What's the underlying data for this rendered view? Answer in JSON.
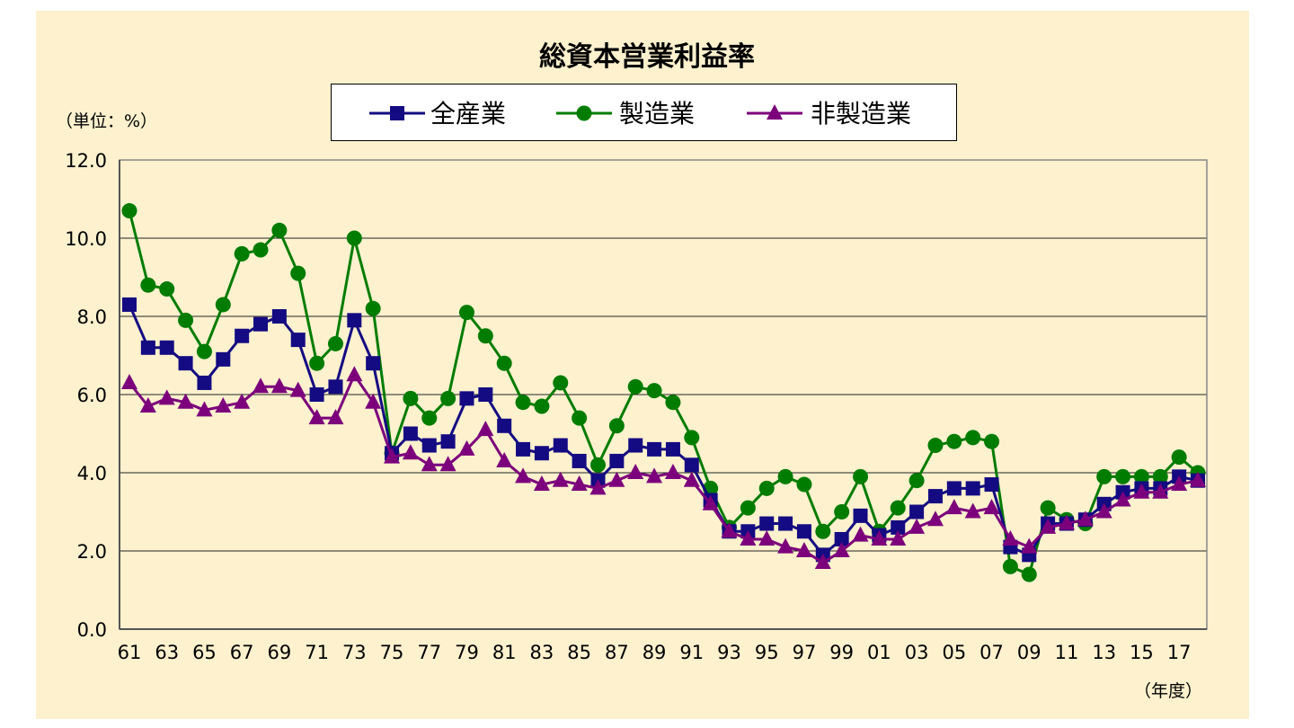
{
  "chart_data": {
    "type": "line",
    "title": "総資本営業利益率",
    "ylabel": "（単位：%）",
    "xlabel": "（年度）",
    "ylim": [
      0,
      12
    ],
    "yticks": [
      "0.0",
      "2.0",
      "4.0",
      "6.0",
      "8.0",
      "10.0",
      "12.0"
    ],
    "grid": true,
    "legend_position": "top",
    "x": [
      "61",
      "62",
      "63",
      "64",
      "65",
      "66",
      "67",
      "68",
      "69",
      "70",
      "71",
      "72",
      "73",
      "74",
      "75",
      "76",
      "77",
      "78",
      "79",
      "80",
      "81",
      "82",
      "83",
      "84",
      "85",
      "86",
      "87",
      "88",
      "89",
      "90",
      "91",
      "92",
      "93",
      "94",
      "95",
      "96",
      "97",
      "98",
      "99",
      "00",
      "01",
      "02",
      "03",
      "04",
      "05",
      "06",
      "07",
      "08",
      "09",
      "10",
      "11",
      "12",
      "13",
      "14",
      "15",
      "16",
      "17",
      "18"
    ],
    "xtick_labels": [
      "61",
      "63",
      "65",
      "67",
      "69",
      "71",
      "73",
      "75",
      "77",
      "79",
      "81",
      "83",
      "85",
      "87",
      "89",
      "91",
      "93",
      "95",
      "97",
      "99",
      "01",
      "03",
      "05",
      "07",
      "09",
      "11",
      "13",
      "15",
      "17"
    ],
    "series": [
      {
        "name": "全産業",
        "color": "#140a82",
        "marker": "square",
        "values": [
          8.3,
          7.2,
          7.2,
          6.8,
          6.3,
          6.9,
          7.5,
          7.8,
          8.0,
          7.4,
          6.0,
          6.2,
          7.9,
          6.8,
          4.5,
          5.0,
          4.7,
          4.8,
          5.9,
          6.0,
          5.2,
          4.6,
          4.5,
          4.7,
          4.3,
          3.8,
          4.3,
          4.7,
          4.6,
          4.6,
          4.2,
          3.3,
          2.5,
          2.5,
          2.7,
          2.7,
          2.5,
          1.9,
          2.3,
          2.9,
          2.4,
          2.6,
          3.0,
          3.4,
          3.6,
          3.6,
          3.7,
          2.1,
          1.9,
          2.7,
          2.7,
          2.8,
          3.2,
          3.5,
          3.6,
          3.6,
          3.9,
          3.8
        ]
      },
      {
        "name": "製造業",
        "color": "#007c00",
        "marker": "circle",
        "values": [
          10.7,
          8.8,
          8.7,
          7.9,
          7.1,
          8.3,
          9.6,
          9.7,
          10.2,
          9.1,
          6.8,
          7.3,
          10.0,
          8.2,
          4.5,
          5.9,
          5.4,
          5.9,
          8.1,
          7.5,
          6.8,
          5.8,
          5.7,
          6.3,
          5.4,
          4.2,
          5.2,
          6.2,
          6.1,
          5.8,
          4.9,
          3.6,
          2.6,
          3.1,
          3.6,
          3.9,
          3.7,
          2.5,
          3.0,
          3.9,
          2.5,
          3.1,
          3.8,
          4.7,
          4.8,
          4.9,
          4.8,
          1.6,
          1.4,
          3.1,
          2.8,
          2.7,
          3.9,
          3.9,
          3.9,
          3.9,
          4.4,
          4.0
        ]
      },
      {
        "name": "非製造業",
        "color": "#7c007c",
        "marker": "triangle",
        "values": [
          6.3,
          5.7,
          5.9,
          5.8,
          5.6,
          5.7,
          5.8,
          6.2,
          6.2,
          6.1,
          5.4,
          5.4,
          6.5,
          5.8,
          4.4,
          4.5,
          4.2,
          4.2,
          4.6,
          5.1,
          4.3,
          3.9,
          3.7,
          3.8,
          3.7,
          3.6,
          3.8,
          4.0,
          3.9,
          4.0,
          3.8,
          3.2,
          2.5,
          2.3,
          2.3,
          2.1,
          2.0,
          1.7,
          2.0,
          2.4,
          2.3,
          2.3,
          2.6,
          2.8,
          3.1,
          3.0,
          3.1,
          2.3,
          2.1,
          2.6,
          2.7,
          2.8,
          3.0,
          3.3,
          3.5,
          3.5,
          3.7,
          3.8
        ]
      }
    ]
  }
}
